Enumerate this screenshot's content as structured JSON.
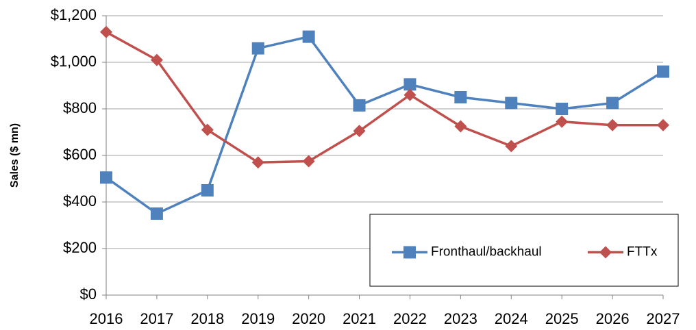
{
  "chart_data": {
    "type": "line",
    "y_label": "Sales ($ mn)",
    "categories": [
      "2016",
      "2017",
      "2018",
      "2019",
      "2020",
      "2021",
      "2022",
      "2023",
      "2024",
      "2025",
      "2026",
      "2027"
    ],
    "series": [
      {
        "name": "Fronthaul/backhaul",
        "color": "#4f81bd",
        "marker": "square",
        "values": [
          505,
          350,
          450,
          1060,
          1110,
          815,
          905,
          850,
          825,
          800,
          825,
          960
        ]
      },
      {
        "name": "FTTx",
        "color": "#c0504d",
        "marker": "diamond",
        "values": [
          1130,
          1010,
          710,
          570,
          575,
          705,
          860,
          725,
          640,
          745,
          730,
          730
        ]
      }
    ],
    "ylim": [
      0,
      1200
    ],
    "yticks": [
      {
        "value": 0,
        "label": "$0"
      },
      {
        "value": 200,
        "label": "$200"
      },
      {
        "value": 400,
        "label": "$400"
      },
      {
        "value": 600,
        "label": "$600"
      },
      {
        "value": 800,
        "label": "$800"
      },
      {
        "value": 1000,
        "label": "$1,000"
      },
      {
        "value": 1200,
        "label": "$1,200"
      }
    ],
    "grid": true,
    "legend": "lower right"
  }
}
